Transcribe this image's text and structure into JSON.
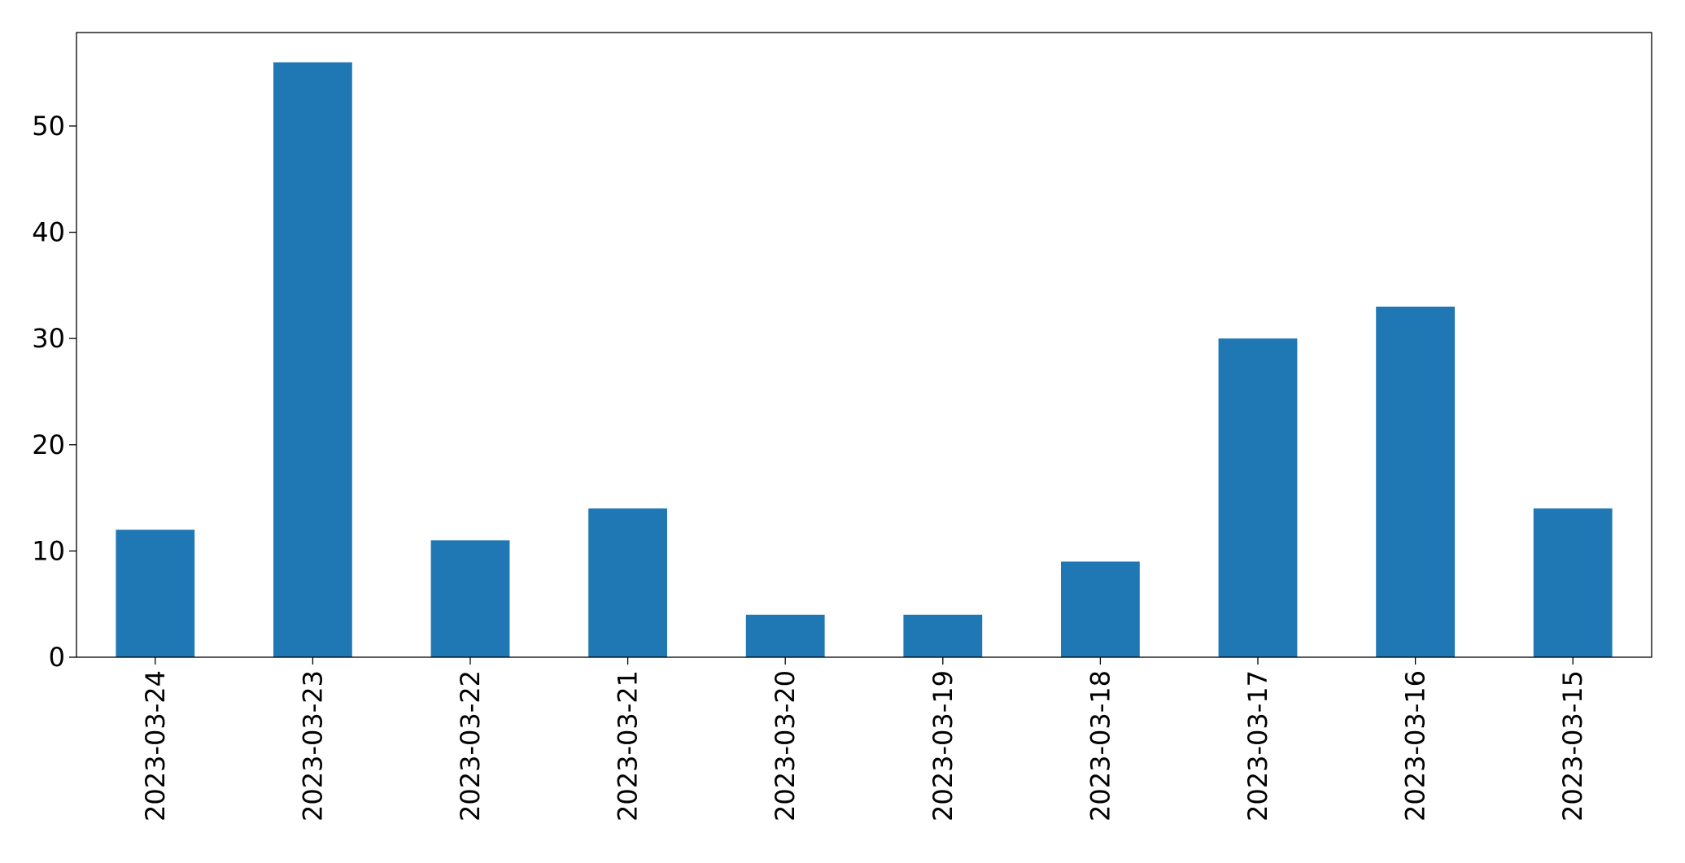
{
  "chart_data": {
    "type": "bar",
    "categories": [
      "2023-03-24",
      "2023-03-23",
      "2023-03-22",
      "2023-03-21",
      "2023-03-20",
      "2023-03-19",
      "2023-03-18",
      "2023-03-17",
      "2023-03-16",
      "2023-03-15"
    ],
    "values": [
      12,
      56,
      11,
      14,
      4,
      4,
      9,
      30,
      33,
      14
    ],
    "color": "#1f77b4",
    "ylim": [
      0,
      58.8
    ],
    "yticks": [
      0,
      10,
      20,
      30,
      40,
      50
    ],
    "grid": false
  }
}
